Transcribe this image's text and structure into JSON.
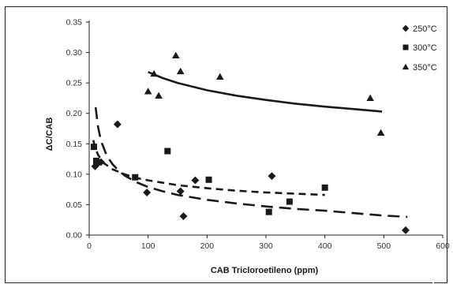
{
  "chart_data": {
    "type": "scatter",
    "title": "",
    "xlabel": "CAB Tricloroetileno (ppm)",
    "ylabel": "ΔC/CAB",
    "xlim": [
      0,
      600
    ],
    "ylim": [
      0,
      0.35
    ],
    "x_ticks": [
      "0",
      "100",
      "200",
      "300",
      "400",
      "500",
      "600"
    ],
    "y_ticks": [
      "0.00",
      "0.05",
      "0.10",
      "0.15",
      "0.20",
      "0.25",
      "0.30",
      "0.35"
    ],
    "grid": false,
    "legend_position": "top-right",
    "series": [
      {
        "name": "250°C",
        "marker": "diamond",
        "color": "#1a1a1a",
        "points": [
          [
            10,
            0.113
          ],
          [
            15,
            0.118
          ],
          [
            20,
            0.12
          ],
          [
            48,
            0.182
          ],
          [
            98,
            0.07
          ],
          [
            155,
            0.072
          ],
          [
            160,
            0.031
          ],
          [
            180,
            0.09
          ],
          [
            310,
            0.097
          ],
          [
            537,
            0.008
          ]
        ],
        "fit": {
          "dash": "long",
          "points": [
            [
              11,
              0.21
            ],
            [
              15,
              0.178
            ],
            [
              20,
              0.155
            ],
            [
              30,
              0.13
            ],
            [
              40,
              0.116
            ],
            [
              50,
              0.106
            ],
            [
              60,
              0.098
            ],
            [
              80,
              0.087
            ],
            [
              100,
              0.079
            ],
            [
              125,
              0.072
            ],
            [
              150,
              0.066
            ],
            [
              200,
              0.058
            ],
            [
              250,
              0.052
            ],
            [
              300,
              0.047
            ],
            [
              350,
              0.043
            ],
            [
              400,
              0.04
            ],
            [
              450,
              0.036
            ],
            [
              500,
              0.032
            ],
            [
              540,
              0.03
            ]
          ]
        }
      },
      {
        "name": "300°C",
        "marker": "square",
        "color": "#1a1a1a",
        "points": [
          [
            8,
            0.145
          ],
          [
            12,
            0.122
          ],
          [
            78,
            0.095
          ],
          [
            133,
            0.138
          ],
          [
            203,
            0.091
          ],
          [
            305,
            0.038
          ],
          [
            340,
            0.055
          ],
          [
            400,
            0.078
          ]
        ],
        "fit": {
          "dash": "medium",
          "points": [
            [
              7,
              0.156
            ],
            [
              10,
              0.144
            ],
            [
              15,
              0.132
            ],
            [
              25,
              0.118
            ],
            [
              40,
              0.108
            ],
            [
              60,
              0.1
            ],
            [
              80,
              0.094
            ],
            [
              100,
              0.09
            ],
            [
              150,
              0.082
            ],
            [
              200,
              0.077
            ],
            [
              250,
              0.073
            ],
            [
              300,
              0.07
            ],
            [
              350,
              0.068
            ],
            [
              400,
              0.066
            ]
          ]
        }
      },
      {
        "name": "350°C",
        "marker": "triangle",
        "color": "#1a1a1a",
        "points": [
          [
            100,
            0.236
          ],
          [
            110,
            0.265
          ],
          [
            118,
            0.229
          ],
          [
            147,
            0.295
          ],
          [
            155,
            0.269
          ],
          [
            222,
            0.26
          ],
          [
            477,
            0.225
          ],
          [
            495,
            0.168
          ]
        ],
        "fit": {
          "dash": "solid",
          "points": [
            [
              100,
              0.268
            ],
            [
              125,
              0.258
            ],
            [
              150,
              0.25
            ],
            [
              200,
              0.238
            ],
            [
              250,
              0.229
            ],
            [
              300,
              0.222
            ],
            [
              350,
              0.216
            ],
            [
              400,
              0.211
            ],
            [
              450,
              0.207
            ],
            [
              497,
              0.203
            ]
          ]
        }
      }
    ]
  }
}
